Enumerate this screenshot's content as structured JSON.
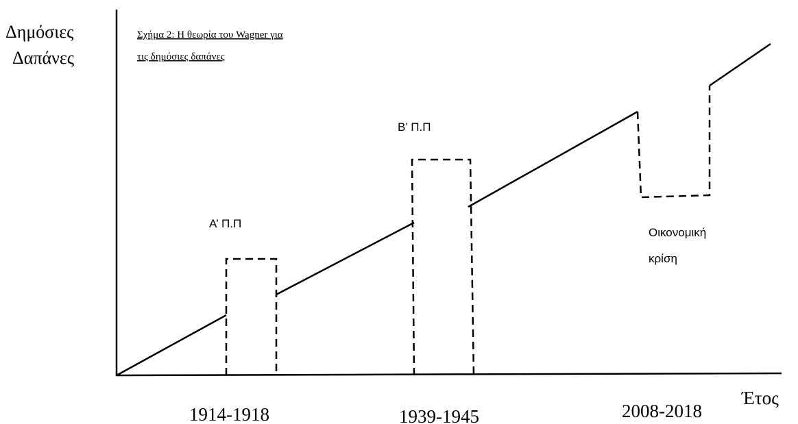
{
  "y_axis_label": [
    "Δημόσιες",
    "Δαπάνες"
  ],
  "title": [
    "Σχήμα 2: Η θεωρία του Wagner για",
    "τις δημόσιες δαπάνες"
  ],
  "events": [
    {
      "label": [
        "Α’ Π.Π"
      ],
      "period": "1914-1918"
    },
    {
      "label": [
        "Β’ Π.Π"
      ],
      "period": "1939-1945"
    },
    {
      "label": [
        "Οικονομική",
        "κρίση"
      ],
      "period": "2008-2018"
    }
  ],
  "x_axis_label": "Έτος"
}
